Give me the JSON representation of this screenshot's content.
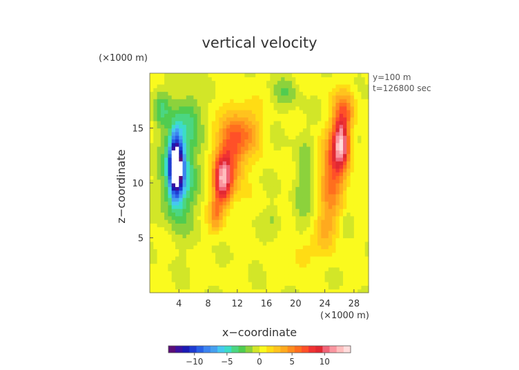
{
  "chart_data": {
    "type": "heatmap",
    "title": "vertical velocity",
    "xlabel": "x−coordinate",
    "ylabel": "z−coordinate",
    "x_unit": "(×1000 m)",
    "z_unit": "(×1000 m)",
    "info": [
      "y=100 m",
      "t=126800 sec"
    ],
    "xlim": [
      0,
      30
    ],
    "ylim": [
      0,
      20
    ],
    "x_ticks": [
      4,
      8,
      12,
      16,
      20,
      24,
      28
    ],
    "x_tick_labels": [
      "4",
      "8",
      "12",
      "16",
      "20",
      "24",
      "28"
    ],
    "y_ticks": [
      5,
      10,
      15
    ],
    "y_tick_labels": [
      "5",
      "10",
      "15"
    ],
    "colorbar": {
      "min": -14,
      "max": 14,
      "ticks": [
        -10,
        -5,
        0,
        5,
        10
      ],
      "tick_labels": [
        "−10",
        "−5",
        "0",
        "5",
        "10"
      ],
      "colors": [
        "#5a0d78",
        "#3a10a0",
        "#1a1ab4",
        "#1e3cd2",
        "#2860e6",
        "#3c84f0",
        "#46a0f0",
        "#46c8f0",
        "#3cdcc8",
        "#4bd682",
        "#50cc50",
        "#8cd23c",
        "#d2e628",
        "#fafa1e",
        "#ffdc14",
        "#ffc31e",
        "#ffaa1e",
        "#ff8c1e",
        "#ff6e1e",
        "#ff5028",
        "#f03232",
        "#e12832",
        "#f06478",
        "#fa96a0",
        "#ffbebe",
        "#ffdcdc"
      ]
    },
    "features": [
      {
        "kind": "updraft",
        "x": 10.0,
        "z": 10.2,
        "value": 10,
        "sx": 1.2,
        "sz": 2.3
      },
      {
        "kind": "updraft",
        "x": 11.2,
        "z": 12.8,
        "value": 6,
        "sx": 1.8,
        "sz": 3.2
      },
      {
        "kind": "updraft",
        "x": 13.2,
        "z": 14.8,
        "value": 4,
        "sx": 2.0,
        "sz": 2.2
      },
      {
        "kind": "updraft",
        "x": 9.0,
        "z": 7.2,
        "value": 4,
        "sx": 0.9,
        "sz": 1.6
      },
      {
        "kind": "updraft",
        "x": 26.3,
        "z": 13.8,
        "value": 10,
        "sx": 1.1,
        "sz": 2.4
      },
      {
        "kind": "updraft",
        "x": 25.2,
        "z": 11.2,
        "value": 6,
        "sx": 1.7,
        "sz": 3.6
      },
      {
        "kind": "updraft",
        "x": 26.8,
        "z": 16.8,
        "value": 4,
        "sx": 1.5,
        "sz": 1.8
      },
      {
        "kind": "updraft",
        "x": 24.3,
        "z": 6.0,
        "value": 3,
        "sx": 1.5,
        "sz": 2.4
      },
      {
        "kind": "updraft",
        "x": 20.8,
        "z": 3.5,
        "value": 2,
        "sx": 1.6,
        "sz": 1.5
      },
      {
        "kind": "downdraft",
        "x": 3.6,
        "z": 11.6,
        "value": -15,
        "sx": 0.9,
        "sz": 2.7
      },
      {
        "kind": "downdraft",
        "x": 4.0,
        "z": 10.8,
        "value": -6,
        "sx": 2.2,
        "sz": 4.2
      },
      {
        "kind": "downdraft",
        "x": 5.3,
        "z": 16.0,
        "value": -3,
        "sx": 1.7,
        "sz": 2.6
      },
      {
        "kind": "downdraft",
        "x": 1.6,
        "z": 16.8,
        "value": -3,
        "sx": 1.2,
        "sz": 1.6
      },
      {
        "kind": "downdraft",
        "x": 21.0,
        "z": 10.5,
        "value": -2,
        "sx": 1.3,
        "sz": 4.5
      },
      {
        "kind": "downdraft",
        "x": 18.5,
        "z": 18.3,
        "value": -2,
        "sx": 1.8,
        "sz": 1.4
      },
      {
        "kind": "downdraft",
        "x": 17.0,
        "z": 6.8,
        "value": -1.5,
        "sx": 1.0,
        "sz": 1.2
      },
      {
        "kind": "downdraft",
        "x": 27.2,
        "z": 6.5,
        "value": -1.5,
        "sx": 0.8,
        "sz": 1.0
      }
    ]
  }
}
